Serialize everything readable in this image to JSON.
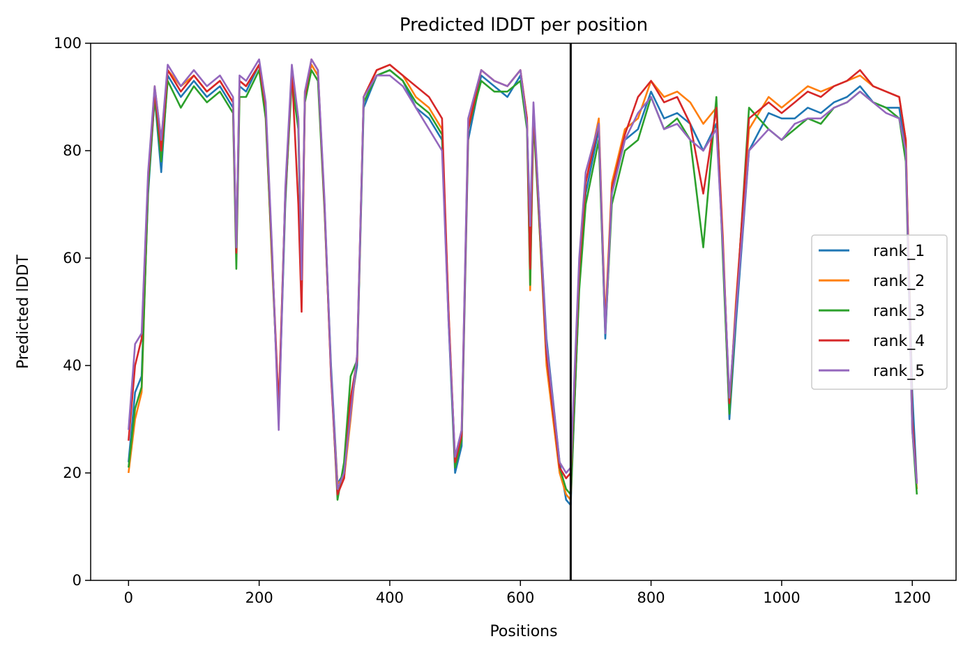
{
  "chart_data": {
    "type": "line",
    "title": "Predicted lDDT per position",
    "xlabel": "Positions",
    "ylabel": "Predicted lDDT",
    "xlim": [
      -58,
      1267
    ],
    "ylim": [
      0,
      100
    ],
    "xticks": [
      0,
      200,
      400,
      600,
      800,
      1000,
      1200
    ],
    "yticks": [
      0,
      20,
      40,
      60,
      80,
      100
    ],
    "grid": false,
    "legend_position": "center-right",
    "chain_break": 677,
    "x": [
      0,
      10,
      20,
      30,
      40,
      50,
      60,
      80,
      100,
      120,
      140,
      160,
      165,
      170,
      180,
      200,
      210,
      220,
      230,
      240,
      250,
      260,
      265,
      270,
      280,
      290,
      300,
      310,
      320,
      330,
      340,
      350,
      360,
      380,
      400,
      420,
      440,
      460,
      480,
      490,
      500,
      510,
      520,
      540,
      560,
      580,
      600,
      610,
      615,
      620,
      640,
      660,
      670,
      677,
      690,
      700,
      720,
      730,
      740,
      760,
      780,
      800,
      820,
      840,
      860,
      880,
      900,
      910,
      920,
      930,
      950,
      980,
      1000,
      1020,
      1040,
      1060,
      1080,
      1100,
      1120,
      1140,
      1160,
      1180,
      1190,
      1200,
      1207
    ],
    "series": [
      {
        "name": "rank_1",
        "color": "#1f77b4",
        "values": [
          22,
          35,
          38,
          72,
          90,
          76,
          94,
          90,
          93,
          90,
          92,
          88,
          60,
          92,
          91,
          96,
          88,
          60,
          30,
          70,
          95,
          85,
          55,
          90,
          96,
          94,
          70,
          40,
          18,
          20,
          32,
          40,
          88,
          94,
          95,
          93,
          88,
          86,
          82,
          48,
          20,
          25,
          82,
          94,
          92,
          90,
          94,
          85,
          65,
          88,
          45,
          22,
          15,
          14,
          55,
          72,
          84,
          45,
          72,
          82,
          84,
          91,
          86,
          87,
          85,
          80,
          85,
          62,
          30,
          48,
          80,
          87,
          86,
          86,
          88,
          87,
          89,
          90,
          92,
          89,
          88,
          88,
          80,
          35,
          18
        ]
      },
      {
        "name": "rank_2",
        "color": "#ff7f0e",
        "values": [
          20,
          30,
          35,
          74,
          92,
          82,
          95,
          92,
          94,
          91,
          93,
          89,
          62,
          93,
          92,
          96,
          87,
          58,
          32,
          72,
          94,
          86,
          56,
          91,
          96,
          94,
          70,
          38,
          18,
          19,
          30,
          42,
          90,
          95,
          96,
          94,
          90,
          88,
          84,
          50,
          22,
          28,
          85,
          95,
          93,
          92,
          95,
          86,
          54,
          88,
          40,
          20,
          16,
          15,
          56,
          74,
          86,
          48,
          74,
          84,
          86,
          93,
          90,
          91,
          89,
          85,
          88,
          64,
          32,
          52,
          84,
          90,
          88,
          90,
          92,
          91,
          92,
          93,
          94,
          92,
          91,
          90,
          82,
          30,
          17
        ]
      },
      {
        "name": "rank_3",
        "color": "#2ca02c",
        "values": [
          21,
          32,
          36,
          73,
          90,
          78,
          93,
          88,
          92,
          89,
          91,
          87,
          58,
          90,
          90,
          95,
          86,
          59,
          31,
          71,
          93,
          84,
          54,
          89,
          95,
          93,
          69,
          39,
          15,
          22,
          38,
          41,
          89,
          94,
          95,
          93,
          89,
          87,
          83,
          49,
          21,
          26,
          84,
          93,
          91,
          91,
          93,
          84,
          55,
          86,
          42,
          21,
          17,
          16,
          54,
          70,
          82,
          46,
          70,
          80,
          82,
          90,
          84,
          86,
          82,
          62,
          90,
          60,
          31,
          50,
          88,
          84,
          82,
          84,
          86,
          85,
          88,
          89,
          91,
          89,
          88,
          86,
          78,
          28,
          16
        ]
      },
      {
        "name": "rank_4",
        "color": "#d62728",
        "values": [
          26,
          40,
          45,
          75,
          91,
          80,
          95,
          91,
          94,
          91,
          93,
          89,
          61,
          93,
          92,
          96,
          88,
          60,
          32,
          72,
          95,
          70,
          50,
          90,
          97,
          95,
          70,
          38,
          16,
          19,
          34,
          41,
          90,
          95,
          96,
          94,
          92,
          90,
          86,
          50,
          22,
          27,
          84,
          95,
          93,
          92,
          95,
          86,
          58,
          88,
          42,
          21,
          19,
          20,
          58,
          74,
          85,
          47,
          73,
          83,
          90,
          93,
          89,
          90,
          85,
          72,
          88,
          63,
          33,
          51,
          86,
          89,
          87,
          89,
          91,
          90,
          92,
          93,
          95,
          92,
          91,
          90,
          82,
          30,
          18
        ]
      },
      {
        "name": "rank_5",
        "color": "#9467bd",
        "values": [
          28,
          44,
          46,
          76,
          92,
          82,
          96,
          92,
          95,
          92,
          94,
          90,
          62,
          94,
          93,
          97,
          89,
          61,
          28,
          73,
          96,
          86,
          56,
          91,
          97,
          95,
          71,
          39,
          17,
          20,
          31,
          42,
          90,
          94,
          94,
          92,
          88,
          84,
          80,
          48,
          23,
          28,
          86,
          95,
          93,
          92,
          95,
          85,
          66,
          89,
          44,
          22,
          20,
          21,
          60,
          76,
          85,
          46,
          72,
          82,
          87,
          90,
          84,
          85,
          82,
          80,
          84,
          62,
          34,
          50,
          80,
          84,
          82,
          85,
          86,
          86,
          88,
          89,
          91,
          89,
          87,
          86,
          80,
          28,
          18
        ]
      }
    ]
  }
}
